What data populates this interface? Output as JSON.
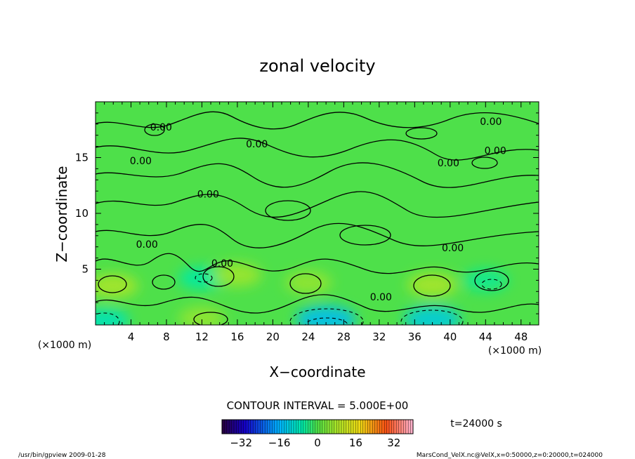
{
  "chart_data": {
    "type": "heatmap",
    "title": "zonal velocity",
    "xlabel": "X−coordinate",
    "ylabel": "Z−coordinate",
    "x_unit": "(×1000 m)",
    "y_unit": "(×1000 m)",
    "xlim": [
      0,
      50
    ],
    "ylim": [
      0,
      20
    ],
    "x_ticks": [
      4,
      8,
      12,
      16,
      20,
      24,
      28,
      32,
      36,
      40,
      44,
      48
    ],
    "y_ticks": [
      5,
      10,
      15
    ],
    "contour_label": "0.00",
    "contour_interval_text": "CONTOUR INTERVAL = 5.000E+00",
    "time_text": "t=24000 s",
    "colorbar": {
      "min": -40,
      "max": 40,
      "tick_values": [
        -32,
        -16,
        0,
        16,
        32
      ],
      "tick_labels": [
        "−32",
        "−16",
        "0",
        "16",
        "32"
      ]
    },
    "features": [
      {
        "x": 2,
        "z": 3.5,
        "value": 8
      },
      {
        "x": 12,
        "z": 4.2,
        "value": -6
      },
      {
        "x": 16,
        "z": 4.5,
        "value": 7
      },
      {
        "x": 24,
        "z": 3.8,
        "value": 6
      },
      {
        "x": 38,
        "z": 3.6,
        "value": 8
      },
      {
        "x": 44,
        "z": 4.0,
        "value": -5
      },
      {
        "x": 26,
        "z": 0.5,
        "value": -14
      },
      {
        "x": 38,
        "z": 0.5,
        "value": -12
      },
      {
        "x": 1,
        "z": 0.4,
        "value": -8
      },
      {
        "x": 12,
        "z": 0.6,
        "value": 6
      }
    ],
    "contour_label_positions": [
      {
        "x": 7.4,
        "z": 17.6
      },
      {
        "x": 18.2,
        "z": 16.1
      },
      {
        "x": 5.1,
        "z": 14.6
      },
      {
        "x": 12.7,
        "z": 11.6
      },
      {
        "x": 5.8,
        "z": 7.1
      },
      {
        "x": 14.3,
        "z": 5.4
      },
      {
        "x": 32.2,
        "z": 2.4
      },
      {
        "x": 44.6,
        "z": 18.1
      },
      {
        "x": 45.1,
        "z": 15.5
      },
      {
        "x": 39.8,
        "z": 14.4
      },
      {
        "x": 40.3,
        "z": 6.8
      }
    ]
  },
  "footer": {
    "left": "/usr/bin/gpview  2009-01-28",
    "right": "MarsCond_VelX.nc@VelX,x=0:50000,z=0:20000,t=024000"
  }
}
